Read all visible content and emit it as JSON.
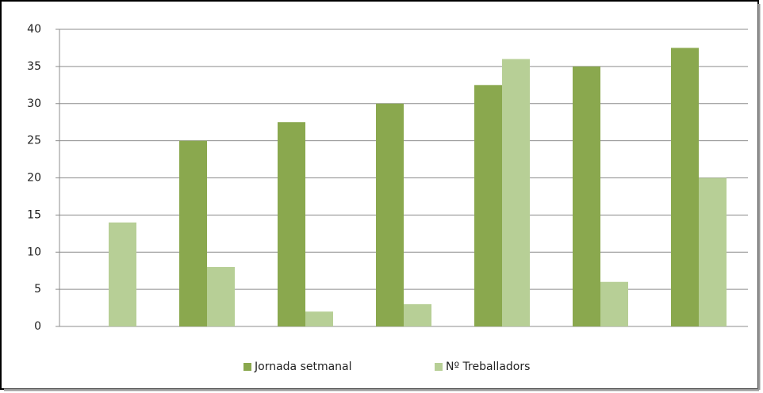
{
  "chart_data": {
    "type": "bar",
    "categories": [
      null,
      null,
      null,
      null,
      null,
      null,
      null
    ],
    "series": [
      {
        "name": "Jornada setmanal",
        "color": "#8aa84e",
        "values": [
          0,
          25,
          27.5,
          30,
          32.5,
          35,
          37.5
        ]
      },
      {
        "name": "Nº Treballadors",
        "color": "#b7cf96",
        "values": [
          14,
          8,
          2,
          3,
          36,
          6,
          20
        ]
      }
    ],
    "ylim": [
      0,
      40
    ],
    "yticks": [
      0,
      5,
      10,
      15,
      20,
      25,
      30,
      35,
      40
    ],
    "grid": true,
    "legend": "bottom"
  }
}
